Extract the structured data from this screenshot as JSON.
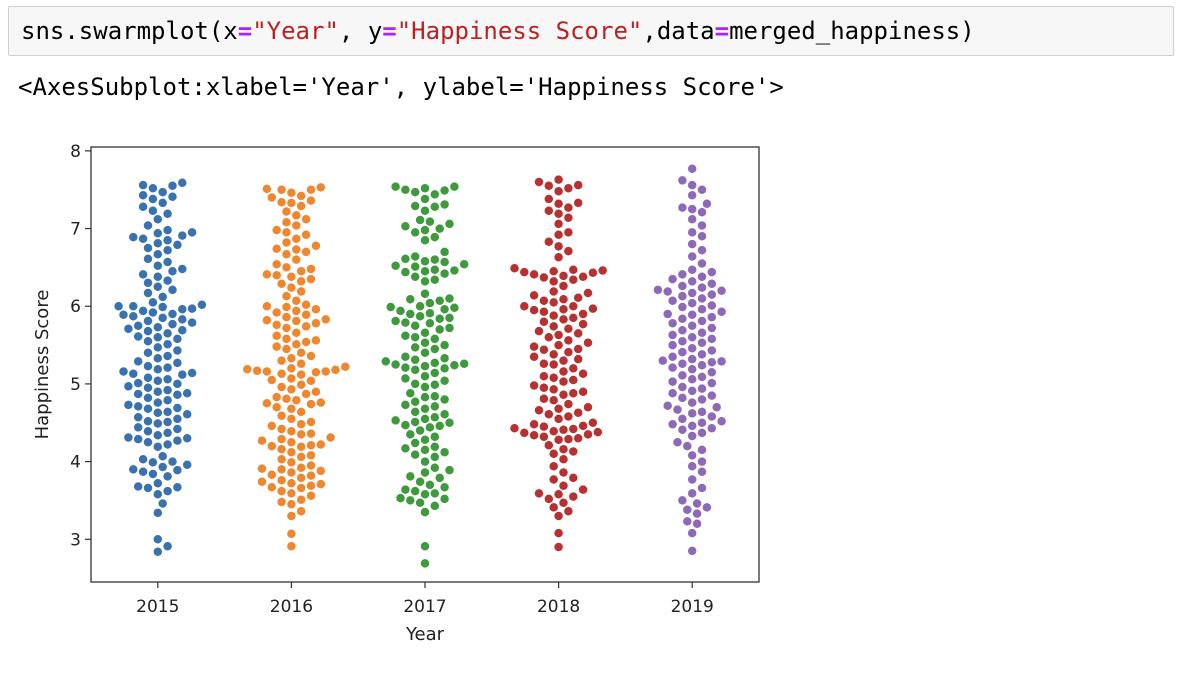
{
  "cell": {
    "code": {
      "fn": "sns.swarmplot(",
      "x_kw": "x",
      "eq": "=",
      "x_val": "\"Year\"",
      "sep1": ", ",
      "y_kw": "y",
      "y_val": "\"Happiness Score\"",
      "sep2": ",",
      "data_kw": "data",
      "data_val": "merged_happiness)"
    },
    "output": "<AxesSubplot:xlabel='Year', ylabel='Happiness Score'>"
  },
  "chart_data": {
    "type": "scatter",
    "subtype": "swarmplot",
    "xlabel": "Year",
    "ylabel": "Happiness Score",
    "categories": [
      "2015",
      "2016",
      "2017",
      "2018",
      "2019"
    ],
    "ylim": [
      2.45,
      8.05
    ],
    "yticks": [
      "3",
      "4",
      "5",
      "6",
      "7",
      "8"
    ],
    "grid": false,
    "series": [
      {
        "category": "2015",
        "color": "#3a72b0",
        "values": [
          2.84,
          2.91,
          3.0,
          3.34,
          3.46,
          3.58,
          3.62,
          3.66,
          3.67,
          3.68,
          3.72,
          3.81,
          3.84,
          3.87,
          3.89,
          3.9,
          3.93,
          3.96,
          3.99,
          4.0,
          4.03,
          4.07,
          4.19,
          4.22,
          4.25,
          4.27,
          4.29,
          4.3,
          4.31,
          4.34,
          4.37,
          4.39,
          4.42,
          4.44,
          4.49,
          4.51,
          4.52,
          4.55,
          4.57,
          4.61,
          4.63,
          4.64,
          4.68,
          4.69,
          4.71,
          4.73,
          4.76,
          4.79,
          4.82,
          4.86,
          4.87,
          4.88,
          4.9,
          4.92,
          4.95,
          4.97,
          5.0,
          5.01,
          5.04,
          5.06,
          5.08,
          5.12,
          5.13,
          5.14,
          5.16,
          5.19,
          5.21,
          5.23,
          5.27,
          5.29,
          5.33,
          5.36,
          5.4,
          5.43,
          5.47,
          5.51,
          5.55,
          5.58,
          5.6,
          5.61,
          5.65,
          5.68,
          5.69,
          5.71,
          5.73,
          5.75,
          5.77,
          5.79,
          5.81,
          5.83,
          5.85,
          5.87,
          5.89,
          5.9,
          5.92,
          5.94,
          5.96,
          5.97,
          5.99,
          6.0,
          6.0,
          6.02,
          6.05,
          6.12,
          6.17,
          6.21,
          6.25,
          6.3,
          6.33,
          6.38,
          6.41,
          6.45,
          6.48,
          6.52,
          6.57,
          6.61,
          6.67,
          6.72,
          6.75,
          6.79,
          6.81,
          6.85,
          6.87,
          6.89,
          6.91,
          6.94,
          6.95,
          6.98,
          7.04,
          7.12,
          7.19,
          7.23,
          7.28,
          7.33,
          7.38,
          7.41,
          7.43,
          7.47,
          7.52,
          7.55,
          7.56,
          7.59
        ]
      },
      {
        "category": "2016",
        "color": "#ef8731",
        "values": [
          2.91,
          3.07,
          3.3,
          3.36,
          3.45,
          3.48,
          3.51,
          3.56,
          3.59,
          3.62,
          3.66,
          3.67,
          3.69,
          3.71,
          3.72,
          3.74,
          3.76,
          3.79,
          3.82,
          3.83,
          3.86,
          3.88,
          3.9,
          3.91,
          3.92,
          3.95,
          3.99,
          4.03,
          4.06,
          4.08,
          4.12,
          4.16,
          4.19,
          4.2,
          4.21,
          4.22,
          4.25,
          4.27,
          4.29,
          4.31,
          4.35,
          4.36,
          4.39,
          4.42,
          4.46,
          4.48,
          4.51,
          4.55,
          4.59,
          4.64,
          4.68,
          4.7,
          4.74,
          4.75,
          4.76,
          4.79,
          4.81,
          4.83,
          4.87,
          4.9,
          4.93,
          4.96,
          4.99,
          5.04,
          5.05,
          5.07,
          5.12,
          5.13,
          5.15,
          5.16,
          5.16,
          5.17,
          5.18,
          5.19,
          5.2,
          5.22,
          5.26,
          5.3,
          5.33,
          5.36,
          5.4,
          5.45,
          5.48,
          5.51,
          5.54,
          5.56,
          5.58,
          5.62,
          5.66,
          5.72,
          5.74,
          5.76,
          5.78,
          5.81,
          5.82,
          5.83,
          5.86,
          5.89,
          5.92,
          5.94,
          5.96,
          5.99,
          6.0,
          6.02,
          6.07,
          6.13,
          6.19,
          6.24,
          6.29,
          6.32,
          6.35,
          6.38,
          6.4,
          6.41,
          6.45,
          6.48,
          6.5,
          6.54,
          6.6,
          6.67,
          6.7,
          6.73,
          6.74,
          6.78,
          6.82,
          6.87,
          6.92,
          6.95,
          6.98,
          7.04,
          7.08,
          7.12,
          7.17,
          7.22,
          7.29,
          7.33,
          7.34,
          7.36,
          7.4,
          7.42,
          7.46,
          7.5,
          7.5,
          7.51,
          7.53
        ]
      },
      {
        "category": "2017",
        "color": "#3f9a3d",
        "values": [
          2.69,
          2.91,
          3.35,
          3.43,
          3.47,
          3.5,
          3.52,
          3.53,
          3.58,
          3.59,
          3.62,
          3.64,
          3.67,
          3.7,
          3.74,
          3.79,
          3.81,
          3.86,
          3.89,
          3.92,
          4.0,
          4.06,
          4.09,
          4.12,
          4.15,
          4.17,
          4.19,
          4.24,
          4.28,
          4.32,
          4.35,
          4.4,
          4.44,
          4.46,
          4.47,
          4.5,
          4.51,
          4.53,
          4.55,
          4.57,
          4.61,
          4.64,
          4.68,
          4.71,
          4.73,
          4.77,
          4.8,
          4.83,
          4.84,
          4.88,
          4.96,
          4.99,
          5.0,
          5.04,
          5.07,
          5.1,
          5.14,
          5.18,
          5.2,
          5.21,
          5.23,
          5.24,
          5.25,
          5.26,
          5.27,
          5.29,
          5.31,
          5.33,
          5.35,
          5.4,
          5.45,
          5.47,
          5.5,
          5.53,
          5.58,
          5.6,
          5.62,
          5.66,
          5.7,
          5.72,
          5.75,
          5.78,
          5.79,
          5.81,
          5.84,
          5.85,
          5.87,
          5.9,
          5.91,
          5.94,
          5.96,
          5.98,
          5.99,
          6.0,
          6.04,
          6.07,
          6.09,
          6.1,
          6.16,
          6.32,
          6.34,
          6.38,
          6.42,
          6.44,
          6.45,
          6.46,
          6.47,
          6.51,
          6.52,
          6.54,
          6.57,
          6.58,
          6.6,
          6.61,
          6.64,
          6.7,
          6.85,
          6.89,
          6.95,
          6.98,
          7.0,
          7.03,
          7.06,
          7.09,
          7.11,
          7.23,
          7.28,
          7.29,
          7.31,
          7.38,
          7.44,
          7.47,
          7.49,
          7.5,
          7.52,
          7.54,
          7.54
        ]
      },
      {
        "category": "2018",
        "color": "#b83131",
        "values": [
          2.9,
          3.08,
          3.3,
          3.36,
          3.41,
          3.47,
          3.52,
          3.55,
          3.58,
          3.59,
          3.64,
          3.69,
          3.77,
          3.79,
          3.86,
          3.94,
          4.03,
          4.1,
          4.13,
          4.16,
          4.21,
          4.28,
          4.29,
          4.3,
          4.32,
          4.34,
          4.35,
          4.37,
          4.38,
          4.39,
          4.41,
          4.42,
          4.43,
          4.45,
          4.46,
          4.48,
          4.5,
          4.55,
          4.58,
          4.61,
          4.63,
          4.66,
          4.68,
          4.7,
          4.74,
          4.79,
          4.81,
          4.86,
          4.88,
          4.9,
          4.93,
          4.95,
          4.98,
          5.03,
          5.05,
          5.08,
          5.1,
          5.13,
          5.16,
          5.2,
          5.25,
          5.26,
          5.3,
          5.32,
          5.35,
          5.38,
          5.41,
          5.44,
          5.45,
          5.48,
          5.5,
          5.53,
          5.56,
          5.6,
          5.63,
          5.65,
          5.68,
          5.71,
          5.74,
          5.77,
          5.8,
          5.83,
          5.85,
          5.88,
          5.9,
          5.93,
          5.95,
          5.96,
          5.97,
          6.0,
          6.0,
          6.05,
          6.07,
          6.09,
          6.11,
          6.14,
          6.17,
          6.19,
          6.26,
          6.32,
          6.34,
          6.37,
          6.38,
          6.39,
          6.41,
          6.43,
          6.44,
          6.45,
          6.46,
          6.47,
          6.49,
          6.63,
          6.71,
          6.77,
          6.83,
          6.92,
          6.95,
          7.06,
          7.14,
          7.19,
          7.23,
          7.27,
          7.32,
          7.33,
          7.38,
          7.48,
          7.52,
          7.55,
          7.56,
          7.6,
          7.63
        ]
      },
      {
        "category": "2019",
        "color": "#8d69b8",
        "values": [
          2.85,
          3.08,
          3.2,
          3.23,
          3.33,
          3.38,
          3.41,
          3.46,
          3.5,
          3.59,
          3.66,
          3.77,
          3.87,
          3.94,
          4.0,
          4.08,
          4.15,
          4.2,
          4.25,
          4.33,
          4.37,
          4.41,
          4.43,
          4.46,
          4.48,
          4.5,
          4.52,
          4.55,
          4.58,
          4.62,
          4.64,
          4.67,
          4.7,
          4.72,
          4.76,
          4.8,
          4.82,
          4.85,
          4.88,
          4.91,
          4.94,
          4.96,
          5.01,
          5.03,
          5.06,
          5.09,
          5.11,
          5.15,
          5.19,
          5.21,
          5.24,
          5.26,
          5.28,
          5.29,
          5.3,
          5.32,
          5.35,
          5.38,
          5.41,
          5.43,
          5.46,
          5.5,
          5.53,
          5.55,
          5.58,
          5.6,
          5.63,
          5.66,
          5.69,
          5.72,
          5.75,
          5.78,
          5.81,
          5.84,
          5.86,
          5.89,
          5.9,
          5.93,
          5.96,
          5.99,
          6.01,
          6.04,
          6.07,
          6.1,
          6.13,
          6.15,
          6.17,
          6.19,
          6.2,
          6.21,
          6.24,
          6.26,
          6.29,
          6.32,
          6.35,
          6.38,
          6.41,
          6.44,
          6.47,
          6.55,
          6.64,
          6.72,
          6.8,
          6.9,
          6.95,
          7.04,
          7.12,
          7.21,
          7.25,
          7.27,
          7.32,
          7.43,
          7.5,
          7.56,
          7.62,
          7.77
        ]
      }
    ]
  }
}
